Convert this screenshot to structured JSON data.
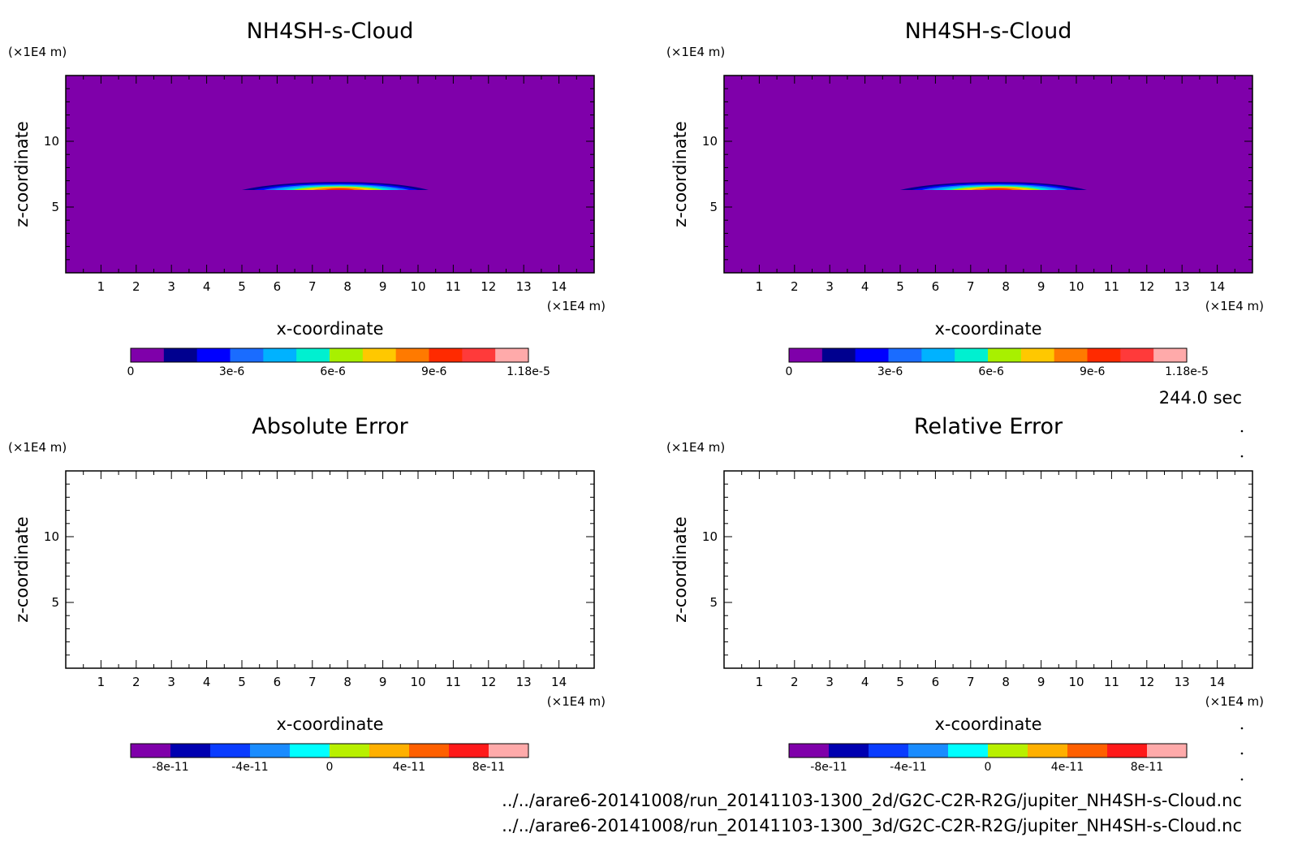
{
  "time_label": "244.0 sec",
  "file_paths": [
    "../../arare6-20141008/run_20141103-1300_2d/G2C-C2R-R2G/jupiter_NH4SH-s-Cloud.nc",
    "../../arare6-20141008/run_20141103-1300_3d/G2C-C2R-R2G/jupiter_NH4SH-s-Cloud.nc"
  ],
  "chart_data": [
    {
      "type": "heatmap",
      "title": "NH4SH-s-Cloud",
      "xlabel": "x-coordinate",
      "ylabel": "z-coordinate",
      "x_unit": "(×1E4 m)",
      "y_unit": "(×1E4 m)",
      "xlim": [
        0,
        15
      ],
      "ylim": [
        0,
        15
      ],
      "x_ticks": [
        "1",
        "2",
        "3",
        "4",
        "5",
        "6",
        "7",
        "8",
        "9",
        "10",
        "11",
        "12",
        "13",
        "14"
      ],
      "y_ticks": [
        "5",
        "10"
      ],
      "background_color": "#7F00AA",
      "cloud": {
        "x_range": [
          5,
          10.3
        ],
        "z_base": 6.3,
        "z_top": 6.9,
        "max_value": 1.18e-05,
        "peak_x": 7.8
      },
      "colorbar": {
        "colors": [
          "#7F00AA",
          "#00008F",
          "#0000FF",
          "#1A6CFF",
          "#00B2FF",
          "#00F0D0",
          "#A8F000",
          "#FFC800",
          "#FF7A00",
          "#FF2A00",
          "#FF3A3A",
          "#FFAAAA"
        ],
        "ticks": [
          {
            "value": 0,
            "label": "0"
          },
          {
            "value": 3e-06,
            "label": "3e-6"
          },
          {
            "value": 6e-06,
            "label": "6e-6"
          },
          {
            "value": 9e-06,
            "label": "9e-6"
          },
          {
            "value": 1.18e-05,
            "label": "1.18e-5"
          }
        ],
        "range": [
          0,
          1.18e-05
        ]
      }
    },
    {
      "type": "heatmap",
      "title": "NH4SH-s-Cloud",
      "xlabel": "x-coordinate",
      "ylabel": "z-coordinate",
      "x_unit": "(×1E4 m)",
      "y_unit": "(×1E4 m)",
      "xlim": [
        0,
        15
      ],
      "ylim": [
        0,
        15
      ],
      "x_ticks": [
        "1",
        "2",
        "3",
        "4",
        "5",
        "6",
        "7",
        "8",
        "9",
        "10",
        "11",
        "12",
        "13",
        "14"
      ],
      "y_ticks": [
        "5",
        "10"
      ],
      "background_color": "#7F00AA",
      "cloud": {
        "x_range": [
          5,
          10.3
        ],
        "z_base": 6.3,
        "z_top": 6.9,
        "max_value": 1.18e-05,
        "peak_x": 7.8
      },
      "colorbar": {
        "colors": [
          "#7F00AA",
          "#00008F",
          "#0000FF",
          "#1A6CFF",
          "#00B2FF",
          "#00F0D0",
          "#A8F000",
          "#FFC800",
          "#FF7A00",
          "#FF2A00",
          "#FF3A3A",
          "#FFAAAA"
        ],
        "ticks": [
          {
            "value": 0,
            "label": "0"
          },
          {
            "value": 3e-06,
            "label": "3e-6"
          },
          {
            "value": 6e-06,
            "label": "6e-6"
          },
          {
            "value": 9e-06,
            "label": "9e-6"
          },
          {
            "value": 1.18e-05,
            "label": "1.18e-5"
          }
        ],
        "range": [
          0,
          1.18e-05
        ]
      }
    },
    {
      "type": "heatmap",
      "title": "Absolute Error",
      "xlabel": "x-coordinate",
      "ylabel": "z-coordinate",
      "x_unit": "(×1E4 m)",
      "y_unit": "(×1E4 m)",
      "xlim": [
        0,
        15
      ],
      "ylim": [
        0,
        15
      ],
      "x_ticks": [
        "1",
        "2",
        "3",
        "4",
        "5",
        "6",
        "7",
        "8",
        "9",
        "10",
        "11",
        "12",
        "13",
        "14"
      ],
      "y_ticks": [
        "5",
        "10"
      ],
      "background_color": "#FFFFFF",
      "colorbar": {
        "colors": [
          "#7F00AA",
          "#0000B0",
          "#0A3CFF",
          "#1A8CFF",
          "#00FFFF",
          "#B8F000",
          "#FFB000",
          "#FF6000",
          "#FF1A1A",
          "#FFAAAA"
        ],
        "ticks": [
          {
            "value": -8e-11,
            "label": "-8e-11"
          },
          {
            "value": -4e-11,
            "label": "-4e-11"
          },
          {
            "value": 0,
            "label": "0"
          },
          {
            "value": 4e-11,
            "label": "4e-11"
          },
          {
            "value": 8e-11,
            "label": "8e-11"
          }
        ],
        "range": [
          -1e-10,
          1e-10
        ]
      }
    },
    {
      "type": "heatmap",
      "title": "Relative Error",
      "xlabel": "x-coordinate",
      "ylabel": "z-coordinate",
      "x_unit": "(×1E4 m)",
      "y_unit": "(×1E4 m)",
      "xlim": [
        0,
        15
      ],
      "ylim": [
        0,
        15
      ],
      "x_ticks": [
        "1",
        "2",
        "3",
        "4",
        "5",
        "6",
        "7",
        "8",
        "9",
        "10",
        "11",
        "12",
        "13",
        "14"
      ],
      "y_ticks": [
        "5",
        "10"
      ],
      "background_color": "#FFFFFF",
      "colorbar": {
        "colors": [
          "#7F00AA",
          "#0000B0",
          "#0A3CFF",
          "#1A8CFF",
          "#00FFFF",
          "#B8F000",
          "#FFB000",
          "#FF6000",
          "#FF1A1A",
          "#FFAAAA"
        ],
        "ticks": [
          {
            "value": -8e-11,
            "label": "-8e-11"
          },
          {
            "value": -4e-11,
            "label": "-4e-11"
          },
          {
            "value": 0,
            "label": "0"
          },
          {
            "value": 4e-11,
            "label": "4e-11"
          },
          {
            "value": 8e-11,
            "label": "8e-11"
          }
        ],
        "range": [
          -1e-10,
          1e-10
        ]
      }
    }
  ]
}
